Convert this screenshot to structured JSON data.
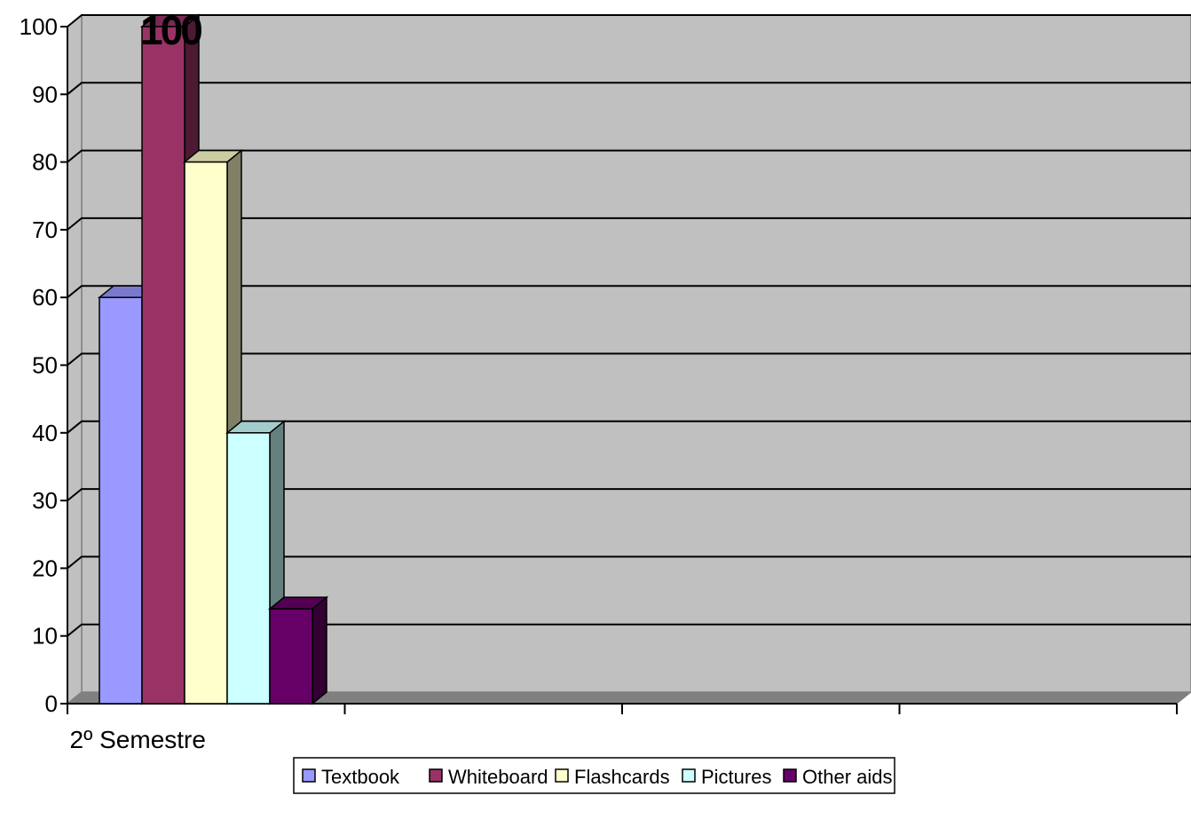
{
  "chart_data": {
    "type": "bar",
    "categories": [
      "2º Semestre"
    ],
    "series": [
      {
        "name": "Textbook",
        "values": [
          60
        ],
        "color": "#9999FF",
        "side": "#6B6BB3",
        "top": "#7A7ACC"
      },
      {
        "name": "Whiteboard",
        "values": [
          100
        ],
        "color": "#993366",
        "side": "#4D1A33",
        "top": "#7A2952",
        "label": "100"
      },
      {
        "name": "Flashcards",
        "values": [
          80
        ],
        "color": "#FFFFCC",
        "side": "#808066",
        "top": "#CCCCA3"
      },
      {
        "name": "Pictures",
        "values": [
          40
        ],
        "color": "#CCFFFF",
        "side": "#668080",
        "top": "#A3CCCC"
      },
      {
        "name": "Other aids",
        "values": [
          14
        ],
        "color": "#660066",
        "side": "#330033",
        "top": "#520052"
      }
    ],
    "ylim": [
      0,
      100
    ],
    "yticks": [
      "0",
      "10",
      "20",
      "30",
      "40",
      "50",
      "60",
      "70",
      "80",
      "90",
      "100"
    ],
    "grid": true,
    "legend_position": "bottom",
    "plot_background": "#C0C0C0",
    "floor_color": "#808080"
  }
}
